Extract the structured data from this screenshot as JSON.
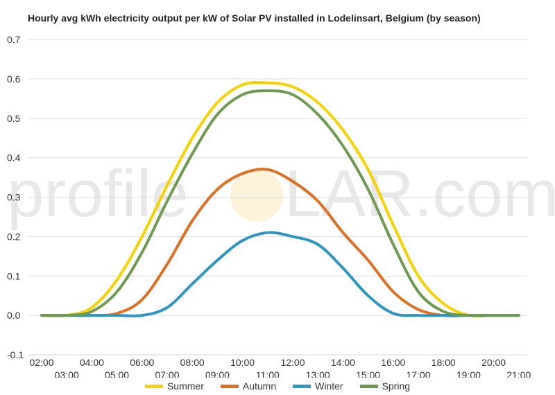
{
  "title": "Hourly avg kWh electricity output per kW of Solar PV installed in Lodelinsart, Belgium (by season)",
  "watermark": {
    "left": "profile",
    "right": "LAR.com",
    "sun_color": "#f5c542"
  },
  "chart_data": {
    "type": "line",
    "title": "Hourly avg kWh electricity output per kW of Solar PV installed in Lodelinsart, Belgium (by season)",
    "xlabel": "",
    "ylabel": "",
    "x": [
      "02:00",
      "03:00",
      "04:00",
      "05:00",
      "06:00",
      "07:00",
      "08:00",
      "09:00",
      "10:00",
      "11:00",
      "12:00",
      "13:00",
      "14:00",
      "15:00",
      "16:00",
      "17:00",
      "18:00",
      "19:00",
      "20:00",
      "21:00"
    ],
    "ylim": [
      -0.1,
      0.7
    ],
    "yticks": [
      "-0.1",
      "0.0",
      "0.1",
      "0.2",
      "0.3",
      "0.4",
      "0.5",
      "0.6",
      "0.7"
    ],
    "grid": true,
    "legend_position": "bottom",
    "series": [
      {
        "name": "Summer",
        "color": "#f7d100",
        "values": [
          0,
          0,
          0.02,
          0.09,
          0.2,
          0.33,
          0.45,
          0.54,
          0.585,
          0.59,
          0.58,
          0.54,
          0.47,
          0.37,
          0.23,
          0.1,
          0.03,
          0,
          0,
          0
        ]
      },
      {
        "name": "Autumn",
        "color": "#e07020",
        "values": [
          0,
          0,
          0,
          0.005,
          0.04,
          0.13,
          0.24,
          0.32,
          0.36,
          0.37,
          0.34,
          0.29,
          0.21,
          0.14,
          0.06,
          0.015,
          0,
          0,
          0,
          0
        ]
      },
      {
        "name": "Winter",
        "color": "#2b96c4",
        "values": [
          0,
          0,
          0,
          0,
          0,
          0.02,
          0.08,
          0.14,
          0.19,
          0.21,
          0.2,
          0.18,
          0.12,
          0.05,
          0.005,
          0,
          0,
          0,
          0,
          0
        ]
      },
      {
        "name": "Spring",
        "color": "#6e9a50",
        "values": [
          0,
          0,
          0.01,
          0.06,
          0.16,
          0.29,
          0.41,
          0.51,
          0.56,
          0.57,
          0.56,
          0.51,
          0.43,
          0.32,
          0.18,
          0.06,
          0.01,
          0,
          0,
          0
        ]
      }
    ]
  }
}
